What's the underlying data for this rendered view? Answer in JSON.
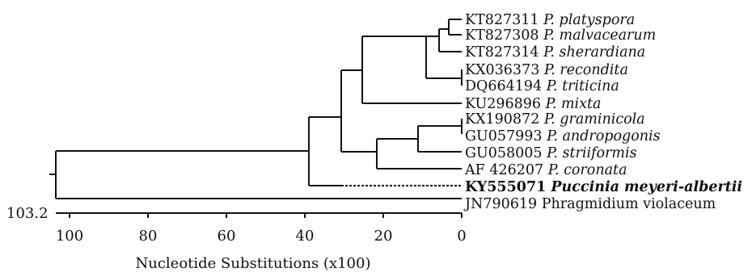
{
  "tree": {
    "root_value": "103.2",
    "axis": {
      "title": "Nucleotide Substitutions (x100)",
      "ticks": [
        "100",
        "80",
        "60",
        "40",
        "20",
        "0"
      ]
    },
    "taxa": [
      {
        "accession": "KT827311",
        "species": "P. platyspora"
      },
      {
        "accession": "KT827308",
        "species": "P. malvacearum"
      },
      {
        "accession": "KT827314",
        "species": "P. sherardiana"
      },
      {
        "accession": "KX036373",
        "species": "P. recondita"
      },
      {
        "accession": "DQ664194",
        "species": "P. triticina"
      },
      {
        "accession": "KU296896",
        "species": "P. mixta"
      },
      {
        "accession": "KX190872",
        "species": "P. graminicola"
      },
      {
        "accession": "GU057993",
        "species": "P. andropogonis"
      },
      {
        "accession": "GU058005",
        "species": "P. striiformis"
      },
      {
        "accession": "AF 426207",
        "species": "P. coronata"
      },
      {
        "accession": "KY555071",
        "species": "Puccinia meyeri-albertii",
        "highlight": true
      },
      {
        "accession": "JN790619",
        "species": "Phragmidium violaceum"
      }
    ]
  }
}
